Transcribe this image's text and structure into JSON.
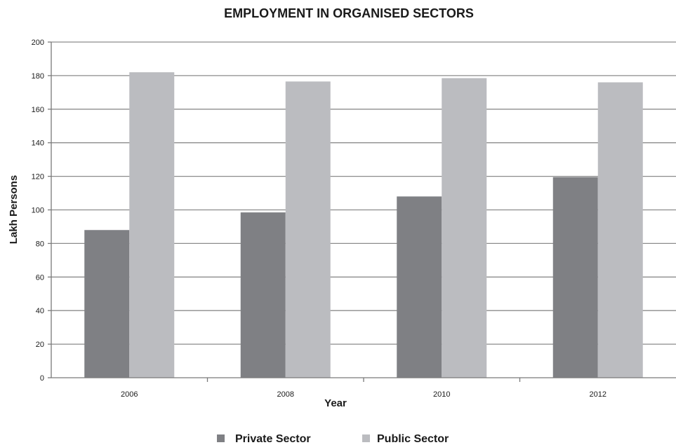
{
  "chart_data": {
    "type": "bar",
    "title": "EMPLOYMENT IN ORGANISED SECTORS",
    "xlabel": "Year",
    "ylabel": "Lakh Persons",
    "categories": [
      "2006",
      "2008",
      "2010",
      "2012"
    ],
    "series": [
      {
        "name": "Private Sector",
        "color": "#7f8084",
        "values": [
          88,
          98.5,
          108,
          119.5
        ]
      },
      {
        "name": "Public Sector",
        "color": "#bbbcc0",
        "values": [
          182,
          176.5,
          178.5,
          176
        ]
      }
    ],
    "ylim": [
      0,
      200
    ],
    "yticks": [
      0,
      20,
      40,
      60,
      80,
      100,
      120,
      140,
      160,
      180,
      200
    ],
    "grid": true,
    "legend_position": "bottom"
  }
}
